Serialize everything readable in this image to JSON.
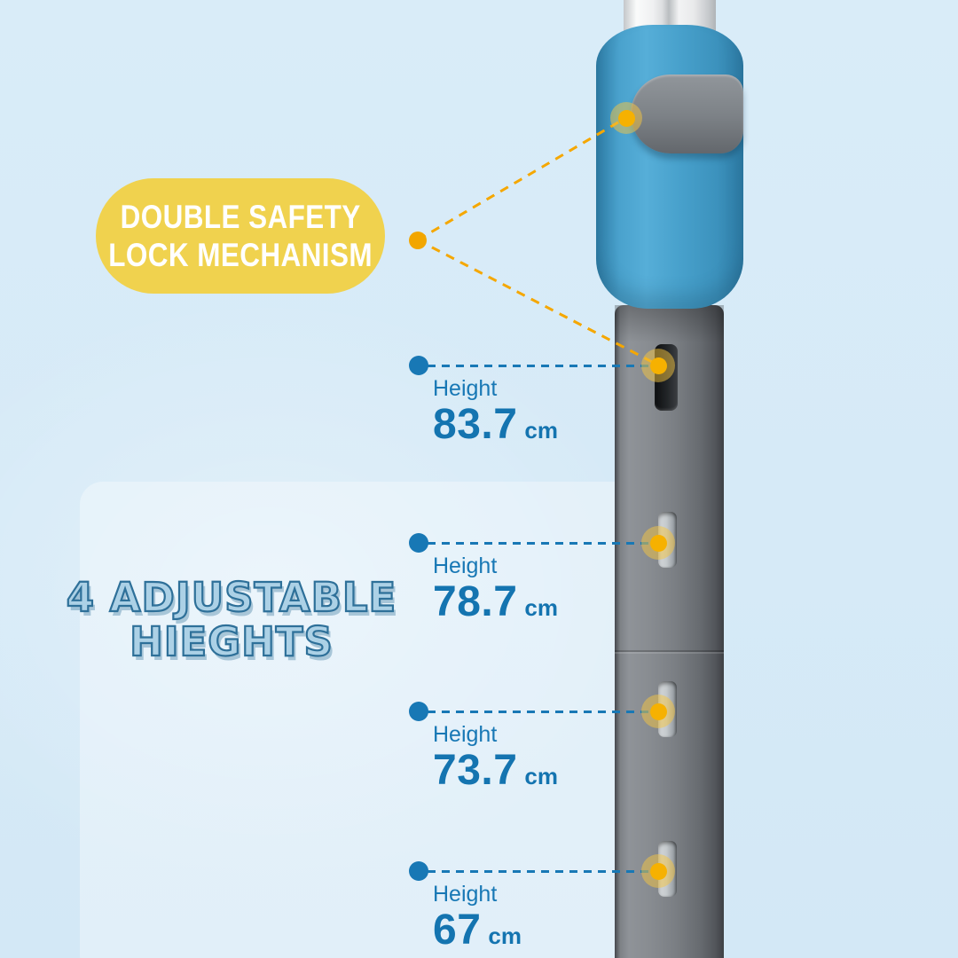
{
  "badge": {
    "line1": "DOUBLE SAFETY",
    "line2": "LOCK MECHANISM",
    "bg_color": "#F0D24E",
    "text_color": "#FFFFFF"
  },
  "heading": {
    "line1": "4 ADJUSTABLE",
    "line2": "HIEGHTS",
    "fill_color": "#ACD1E6",
    "stroke_color": "#2E7099"
  },
  "callouts": {
    "accent_color": "#1878B5",
    "value_color": "#1474B0",
    "items": [
      {
        "label": "Height",
        "value": "83.7",
        "unit": "cm"
      },
      {
        "label": "Height",
        "value": "78.7",
        "unit": "cm"
      },
      {
        "label": "Height",
        "value": "73.7",
        "unit": "cm"
      },
      {
        "label": "Height",
        "value": "67",
        "unit": "cm"
      }
    ]
  },
  "connectors": {
    "orange_color": "#F5A700",
    "blue_color": "#1878B5",
    "glow_core_color": "#F6B100",
    "glow_halo_color": "rgba(246,198,66,0.5)"
  },
  "product": {
    "collar_color": "#47A0CB",
    "clip_color": "#7D8287",
    "pole_color": "#7B7F84",
    "background_color": "#D9ECF8"
  }
}
